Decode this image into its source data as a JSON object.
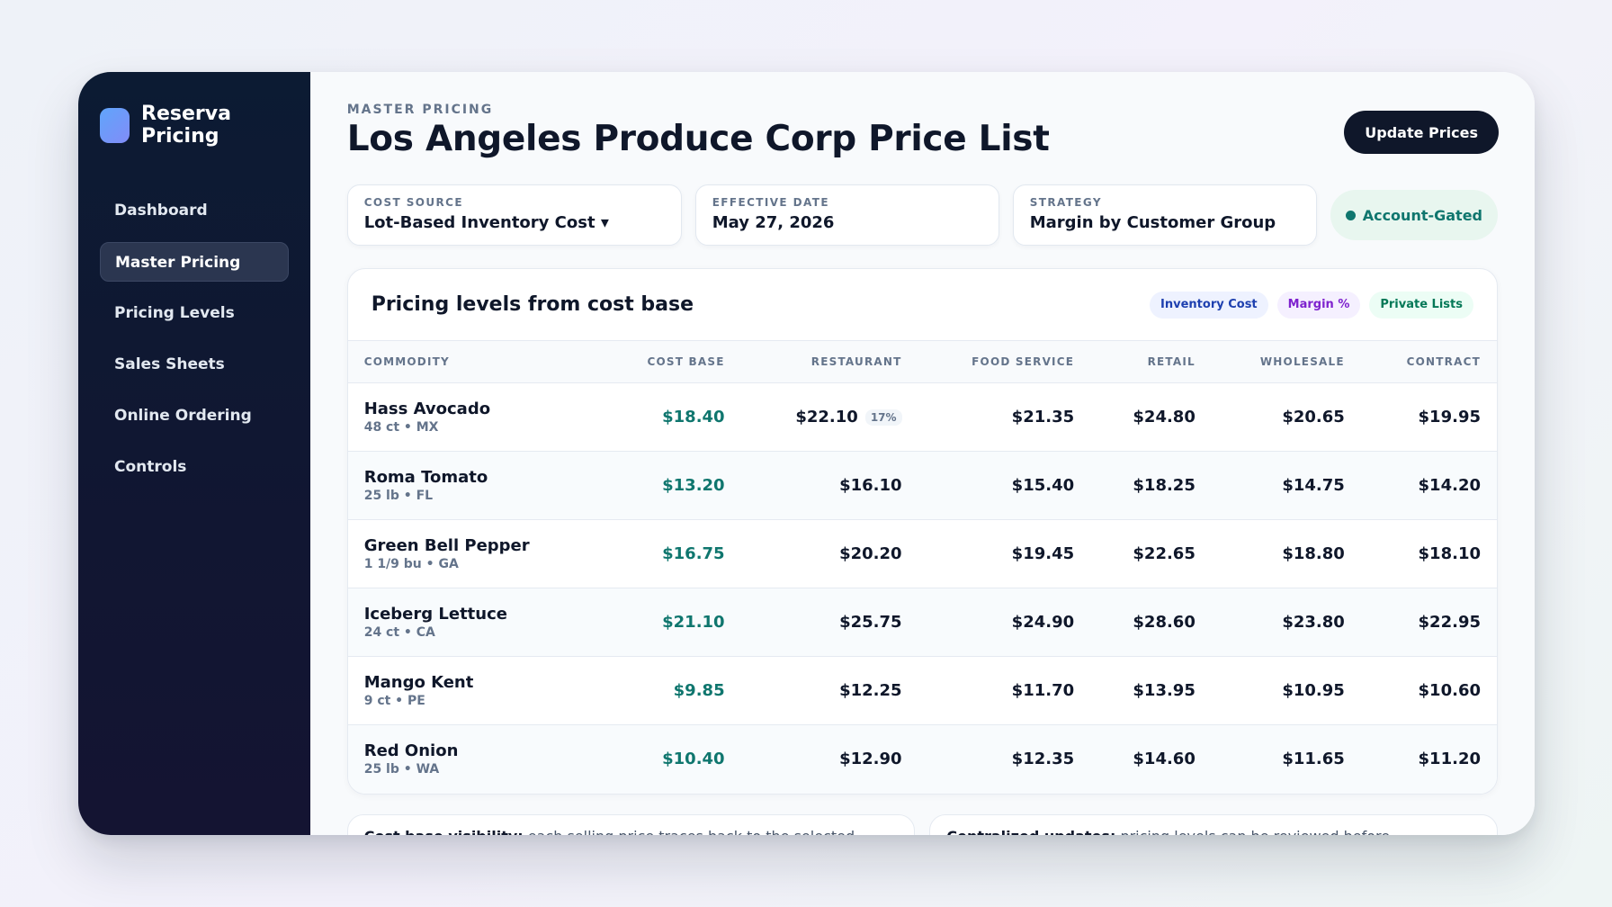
{
  "sidebar": {
    "brand": "Reserva Pricing",
    "items": [
      {
        "label": "Dashboard",
        "active": false
      },
      {
        "label": "Master Pricing",
        "active": true
      },
      {
        "label": "Pricing Levels",
        "active": false
      },
      {
        "label": "Sales Sheets",
        "active": false
      },
      {
        "label": "Online Ordering",
        "active": false
      },
      {
        "label": "Controls",
        "active": false
      }
    ]
  },
  "header": {
    "eyebrow": "MASTER PRICING",
    "title": "Los Angeles Produce Corp Price List",
    "update_label": "Update Prices"
  },
  "filters": {
    "cost_source": {
      "label": "COST SOURCE",
      "value": "Lot-Based Inventory Cost ▾"
    },
    "effective_date": {
      "label": "EFFECTIVE DATE",
      "value": "May 27, 2026"
    },
    "strategy": {
      "label": "STRATEGY",
      "value": "Margin by Customer Group"
    },
    "gate_label": "Account-Gated"
  },
  "card": {
    "title": "Pricing levels from cost base",
    "chips": [
      "Inventory Cost",
      "Margin %",
      "Private Lists"
    ]
  },
  "table": {
    "columns": [
      "COMMODITY",
      "COST BASE",
      "RESTAURANT",
      "FOOD SERVICE",
      "RETAIL",
      "WHOLESALE",
      "CONTRACT"
    ],
    "rows": [
      {
        "name": "Hass Avocado",
        "meta": "48 ct • MX",
        "cost": "$18.40",
        "restaurant": "$22.10",
        "margin": "17%",
        "food_service": "$21.35",
        "retail": "$24.80",
        "wholesale": "$20.65",
        "contract": "$19.95"
      },
      {
        "name": "Roma Tomato",
        "meta": "25 lb • FL",
        "cost": "$13.20",
        "restaurant": "$16.10",
        "margin": "",
        "food_service": "$15.40",
        "retail": "$18.25",
        "wholesale": "$14.75",
        "contract": "$14.20"
      },
      {
        "name": "Green Bell Pepper",
        "meta": "1 1/9 bu • GA",
        "cost": "$16.75",
        "restaurant": "$20.20",
        "margin": "",
        "food_service": "$19.45",
        "retail": "$22.65",
        "wholesale": "$18.80",
        "contract": "$18.10"
      },
      {
        "name": "Iceberg Lettuce",
        "meta": "24 ct • CA",
        "cost": "$21.10",
        "restaurant": "$25.75",
        "margin": "",
        "food_service": "$24.90",
        "retail": "$28.60",
        "wholesale": "$23.80",
        "contract": "$22.95"
      },
      {
        "name": "Mango Kent",
        "meta": "9 ct • PE",
        "cost": "$9.85",
        "restaurant": "$12.25",
        "margin": "",
        "food_service": "$11.70",
        "retail": "$13.95",
        "wholesale": "$10.95",
        "contract": "$10.60"
      },
      {
        "name": "Red Onion",
        "meta": "25 lb • WA",
        "cost": "$10.40",
        "restaurant": "$12.90",
        "margin": "",
        "food_service": "$12.35",
        "retail": "$14.60",
        "wholesale": "$11.65",
        "contract": "$11.20"
      }
    ]
  },
  "notes": [
    {
      "bold": "Cost base visibility:",
      "text": " each selling price traces back to the selected"
    },
    {
      "bold": "Centralized updates:",
      "text": " pricing levels can be reviewed before"
    }
  ],
  "colors": {
    "sidebar_bg": "#0c1b33",
    "accent_cost": "#0f766e",
    "primary_button": "#0f172a"
  }
}
